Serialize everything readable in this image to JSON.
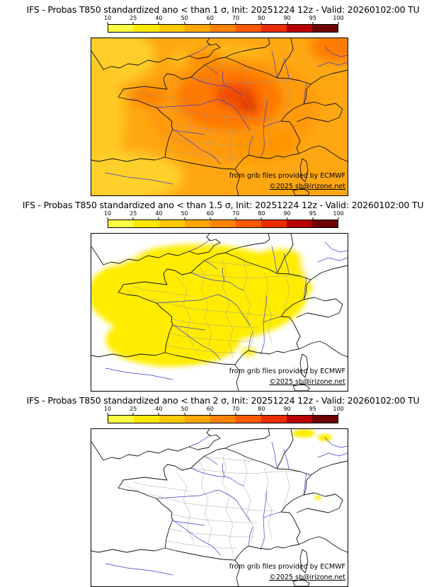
{
  "page": {
    "background": "#ffffff"
  },
  "panels": [
    {
      "title": "IFS - Probas T850  standardized ano < than 1 σ, Init: 20251224 12z - Valid: 20260102:00 TU",
      "credit_ecmwf": "from grib files provided by ECMWF",
      "credit_copyright": "©2025 sb@irizone.net"
    },
    {
      "title": "IFS - Probas T850  standardized ano < than 1.5 σ, Init: 20251224 12z - Valid: 20260102:00 TU",
      "credit_ecmwf": "from grib files provided by ECMWF",
      "credit_copyright": "©2025 sb@irizone.net"
    },
    {
      "title": "IFS - Probas T850  standardized ano < than 2 σ, Init: 20251224 12z - Valid: 20260102:00 TU",
      "credit_ecmwf": "from grib files provided by ECMWF",
      "credit_copyright": "©2025 sb@irizone.net"
    }
  ],
  "colorbar": {
    "tick_labels": [
      "10",
      "25",
      "40",
      "50",
      "60",
      "70",
      "80",
      "90",
      "95",
      "100"
    ],
    "segment_colors": [
      "#fdff43",
      "#ffe800",
      "#ffc900",
      "#ffa700",
      "#ff8300",
      "#ff5a00",
      "#ea2c00",
      "#b80000",
      "#6f0000"
    ]
  },
  "chart_data": [
    {
      "type": "heatmap",
      "model": "IFS",
      "parameter": "Probability (%) that T850 standardized anomaly < 1 σ",
      "init": "20251224 12z",
      "valid": "20260102:00 TU",
      "region": "France and surroundings",
      "colorbar_ticks_pct": [
        10,
        25,
        40,
        50,
        60,
        70,
        80,
        90,
        95,
        100
      ],
      "legend_position": "top",
      "regions": [
        {
          "area": "Paris basin / Champagne–Burgundy",
          "probability_pct": "80-95"
        },
        {
          "area": "most of France",
          "probability_pct": "60-80"
        },
        {
          "area": "Atlantic fringe, Channel, northern Spain",
          "probability_pct": "40-60"
        },
        {
          "area": "far western and southwestern map edges",
          "probability_pct": "25-40"
        }
      ],
      "field": {
        "base": "#ffa712",
        "blur": 7,
        "blobs": [
          [
            25,
            25,
            65,
            40,
            "#ffce29"
          ],
          [
            8,
            115,
            40,
            80,
            "#ffc824"
          ],
          [
            45,
            195,
            85,
            35,
            "#ffd02b"
          ],
          [
            180,
            30,
            70,
            20,
            "#ffbe1c"
          ],
          [
            200,
            100,
            120,
            75,
            "#ff9a07"
          ],
          [
            160,
            28,
            25,
            12,
            "#ff8c00"
          ],
          [
            80,
            82,
            25,
            14,
            "#ff8200"
          ],
          [
            350,
            12,
            40,
            22,
            "#ff7c00"
          ],
          [
            245,
            150,
            45,
            22,
            "#ff9604"
          ],
          [
            195,
            85,
            75,
            45,
            "#ff7800"
          ],
          [
            205,
            80,
            30,
            18,
            "#f04800"
          ],
          [
            222,
            98,
            16,
            10,
            "#e03800"
          ]
        ]
      }
    },
    {
      "type": "heatmap",
      "model": "IFS",
      "parameter": "Probability (%) that T850 standardized anomaly < 1.5 σ",
      "init": "20251224 12z",
      "valid": "20260102:00 TU",
      "region": "France and surroundings",
      "colorbar_ticks_pct": [
        10,
        25,
        40,
        50,
        60,
        70,
        80,
        90,
        95,
        100
      ],
      "legend_position": "top",
      "regions": [
        {
          "area": "most of France, Bay of Biscay, southern England",
          "probability_pct": "10-25"
        },
        {
          "area": "northeast edge, Alps, Mediterranean, far east of map",
          "probability_pct": "<10"
        }
      ],
      "field": {
        "base": "#ffffff",
        "blur": 4,
        "blobs": [
          [
            150,
            85,
            155,
            70,
            "#ffec00"
          ],
          [
            115,
            150,
            95,
            38,
            "#ffec00"
          ],
          [
            265,
            60,
            55,
            38,
            "#ffec00"
          ],
          [
            5,
            5,
            75,
            40,
            "#ffffff"
          ],
          [
            350,
            35,
            52,
            52,
            "#ffffff"
          ],
          [
            345,
            182,
            82,
            66,
            "#ffffff"
          ],
          [
            200,
            213,
            115,
            22,
            "#ffffff"
          ],
          [
            38,
            210,
            62,
            20,
            "#ffffff"
          ],
          [
            222,
            167,
            10,
            6,
            "#ffec00"
          ]
        ]
      }
    },
    {
      "type": "heatmap",
      "model": "IFS",
      "parameter": "Probability (%) that T850 standardized anomaly < 2 σ",
      "init": "20251224 12z",
      "valid": "20260102:00 TU",
      "region": "France and surroundings",
      "colorbar_ticks_pct": [
        10,
        25,
        40,
        50,
        60,
        70,
        80,
        90,
        95,
        100
      ],
      "legend_position": "top",
      "regions": [
        {
          "area": "small spots near the northeastern map edge",
          "probability_pct": "10-25"
        },
        {
          "area": "rest of the map",
          "probability_pct": "<10"
        }
      ],
      "field": {
        "base": "#ffffff",
        "blur": 2,
        "blobs": [
          [
            300,
            6,
            16,
            6,
            "#ffec00"
          ],
          [
            330,
            12,
            10,
            5,
            "#ffec00"
          ],
          [
            320,
            97,
            5,
            3,
            "#ffec00"
          ]
        ]
      }
    }
  ]
}
